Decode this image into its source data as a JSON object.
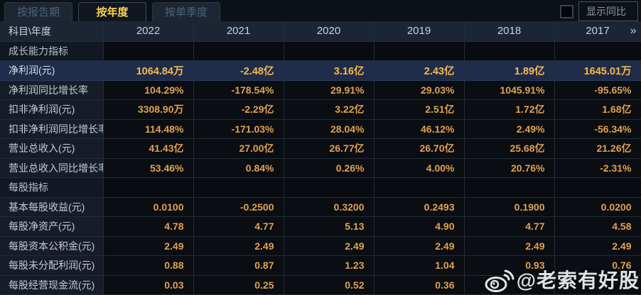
{
  "tabs": [
    {
      "label": "按报告期",
      "active": false
    },
    {
      "label": "按年度",
      "active": true
    },
    {
      "label": "按单季度",
      "active": false
    }
  ],
  "controls": {
    "show_yoy_label": "显示同比"
  },
  "table": {
    "corner_label": "科目\\年度",
    "years": [
      "2022",
      "2021",
      "2020",
      "2019",
      "2018",
      "2017"
    ],
    "more_icon": "»",
    "rows": [
      {
        "type": "section",
        "label": "成长能力指标",
        "values": [
          "",
          "",
          "",
          "",
          "",
          ""
        ]
      },
      {
        "type": "highlight",
        "label": "净利润(元)",
        "values": [
          "1064.84万",
          "-2.48亿",
          "3.16亿",
          "2.43亿",
          "1.89亿",
          "1645.01万"
        ]
      },
      {
        "type": "data",
        "label": "净利润同比增长率",
        "values": [
          "104.29%",
          "-178.54%",
          "29.91%",
          "29.03%",
          "1045.91%",
          "-95.65%"
        ]
      },
      {
        "type": "data",
        "label": "扣非净利润(元)",
        "values": [
          "3308.90万",
          "-2.29亿",
          "3.22亿",
          "2.51亿",
          "1.72亿",
          "1.68亿"
        ]
      },
      {
        "type": "data",
        "label": "扣非净利润同比增长率",
        "values": [
          "114.48%",
          "-171.03%",
          "28.04%",
          "46.12%",
          "2.49%",
          "-56.34%"
        ]
      },
      {
        "type": "data",
        "label": "营业总收入(元)",
        "values": [
          "41.43亿",
          "27.00亿",
          "26.77亿",
          "26.70亿",
          "25.68亿",
          "21.26亿"
        ]
      },
      {
        "type": "data",
        "label": "营业总收入同比增长率",
        "values": [
          "53.46%",
          "0.84%",
          "0.26%",
          "4.00%",
          "20.76%",
          "-2.31%"
        ]
      },
      {
        "type": "section",
        "label": "每股指标",
        "values": [
          "",
          "",
          "",
          "",
          "",
          ""
        ]
      },
      {
        "type": "data",
        "label": "基本每股收益(元)",
        "values": [
          "0.0100",
          "-0.2500",
          "0.3200",
          "0.2493",
          "0.1900",
          "0.0200"
        ]
      },
      {
        "type": "data",
        "label": "每股净资产(元)",
        "values": [
          "4.78",
          "4.77",
          "5.13",
          "4.90",
          "4.77",
          "4.58"
        ]
      },
      {
        "type": "data",
        "label": "每股资本公积金(元)",
        "values": [
          "2.49",
          "2.49",
          "2.49",
          "2.49",
          "2.49",
          "2.49"
        ]
      },
      {
        "type": "data",
        "label": "每股未分配利润(元)",
        "values": [
          "0.88",
          "0.87",
          "1.23",
          "1.04",
          "0.93",
          "0.76"
        ]
      },
      {
        "type": "data",
        "label": "每股经营现金流(元)",
        "values": [
          "0.03",
          "0.25",
          "0.52",
          "0.36",
          "",
          ""
        ]
      }
    ]
  },
  "watermark": {
    "text": "@老索有好股"
  },
  "colors": {
    "accent_gold": "#ffd34e",
    "value_orange": "#e2a24f",
    "highlight_row_bg": "#1f2d4b",
    "header_bg": "#1b2533",
    "label_col_bg": "#161d28",
    "page_bg": "#0a0d12"
  }
}
